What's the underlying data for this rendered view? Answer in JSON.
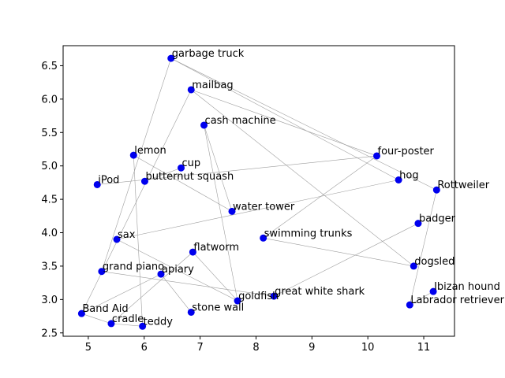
{
  "chart_data": {
    "type": "scatter",
    "title": "",
    "xlabel": "",
    "ylabel": "",
    "xlim": [
      4.55,
      11.55
    ],
    "ylim": [
      2.45,
      6.8
    ],
    "grid": false,
    "xticks": [
      5,
      6,
      7,
      8,
      9,
      10,
      11
    ],
    "yticks": [
      2.5,
      3.0,
      3.5,
      4.0,
      4.5,
      5.0,
      5.5,
      6.0,
      6.5
    ],
    "xtick_labels": [
      "5",
      "6",
      "7",
      "8",
      "9",
      "10",
      "11"
    ],
    "ytick_labels": [
      "2.5",
      "3.0",
      "3.5",
      "4.0",
      "4.5",
      "5.0",
      "5.5",
      "6.0",
      "6.5"
    ],
    "marker_color": "#0000ee",
    "edge_color": "#9e9e9e",
    "points": [
      {
        "label": "garbage truck",
        "x": 6.48,
        "y": 6.61
      },
      {
        "label": "mailbag",
        "x": 6.84,
        "y": 6.14
      },
      {
        "label": "cash machine",
        "x": 7.07,
        "y": 5.61
      },
      {
        "label": "lemon",
        "x": 5.81,
        "y": 5.16
      },
      {
        "label": "four-poster",
        "x": 10.16,
        "y": 5.15
      },
      {
        "label": "cup",
        "x": 6.66,
        "y": 4.97
      },
      {
        "label": "hog",
        "x": 10.55,
        "y": 4.79
      },
      {
        "label": "butternut squash",
        "x": 6.01,
        "y": 4.77
      },
      {
        "label": "iPod",
        "x": 5.16,
        "y": 4.72
      },
      {
        "label": "Rottweiler",
        "x": 11.23,
        "y": 4.64
      },
      {
        "label": "water tower",
        "x": 7.57,
        "y": 4.32
      },
      {
        "label": "badger",
        "x": 10.9,
        "y": 4.14
      },
      {
        "label": "swimming trunks",
        "x": 8.13,
        "y": 3.92
      },
      {
        "label": "sax",
        "x": 5.51,
        "y": 3.9
      },
      {
        "label": "flatworm",
        "x": 6.87,
        "y": 3.71
      },
      {
        "label": "dogsled",
        "x": 10.82,
        "y": 3.5
      },
      {
        "label": "grand piano",
        "x": 5.24,
        "y": 3.42
      },
      {
        "label": "apiary",
        "x": 6.3,
        "y": 3.38
      },
      {
        "label": "Ibizan hound",
        "x": 11.17,
        "y": 3.12
      },
      {
        "label": "great white shark",
        "x": 8.32,
        "y": 3.05
      },
      {
        "label": "goldfish",
        "x": 7.67,
        "y": 2.98
      },
      {
        "label": "Labrador retriever",
        "x": 10.75,
        "y": 2.92
      },
      {
        "label": "stone wall",
        "x": 6.84,
        "y": 2.81
      },
      {
        "label": "Band Aid",
        "x": 4.88,
        "y": 2.79
      },
      {
        "label": "cradle",
        "x": 5.41,
        "y": 2.64
      },
      {
        "label": "teddy",
        "x": 5.97,
        "y": 2.6
      }
    ],
    "edges": [
      [
        "garbage truck",
        "hog"
      ],
      [
        "garbage truck",
        "Rottweiler"
      ],
      [
        "garbage truck",
        "grand piano"
      ],
      [
        "mailbag",
        "four-poster"
      ],
      [
        "mailbag",
        "dogsled"
      ],
      [
        "mailbag",
        "Band Aid"
      ],
      [
        "cash machine",
        "water tower"
      ],
      [
        "cash machine",
        "goldfish"
      ],
      [
        "lemon",
        "water tower"
      ],
      [
        "lemon",
        "teddy"
      ],
      [
        "iPod",
        "four-poster"
      ],
      [
        "four-poster",
        "swimming trunks"
      ],
      [
        "hog",
        "sax"
      ],
      [
        "sax",
        "goldfish"
      ],
      [
        "swimming trunks",
        "dogsled"
      ],
      [
        "badger",
        "great white shark"
      ],
      [
        "Rottweiler",
        "Labrador retriever"
      ],
      [
        "grand piano",
        "great white shark"
      ],
      [
        "flatworm",
        "goldfish"
      ],
      [
        "flatworm",
        "cradle"
      ],
      [
        "apiary",
        "Band Aid"
      ],
      [
        "apiary",
        "stone wall"
      ],
      [
        "butternut squash",
        "cup"
      ],
      [
        "Ibizan hound",
        "Labrador retriever"
      ],
      [
        "Band Aid",
        "cradle"
      ],
      [
        "cradle",
        "teddy"
      ]
    ]
  }
}
